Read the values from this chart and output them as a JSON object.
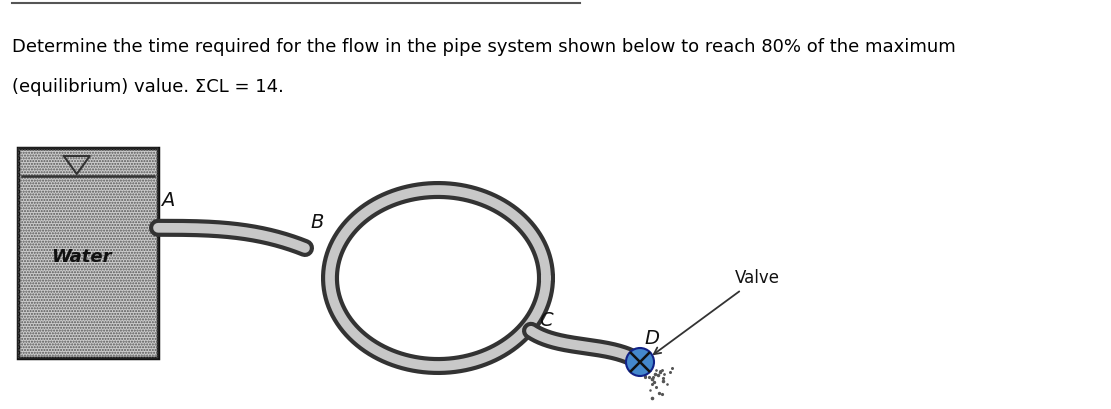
{
  "title_line1": "Determine the time required for the flow in the pipe system shown below to reach 80% of the maximum",
  "title_line2": "(equilibrium) value. ΣCL = 14.",
  "label_water": "Water",
  "label_A": "A",
  "label_B": "B",
  "label_C": "C",
  "label_D": "D",
  "label_valve": "Valve",
  "bg_color": "#ffffff",
  "pipe_out_color": "#333333",
  "pipe_in_color": "#c8c8c8",
  "tank_face_color": "#cccccc",
  "tank_edge_color": "#111111",
  "valve_fill": "#4488cc",
  "valve_edge": "#112288",
  "text_color": "#000000",
  "topline_color": "#555555",
  "pipe_out_lw": 13,
  "pipe_in_lw": 7
}
